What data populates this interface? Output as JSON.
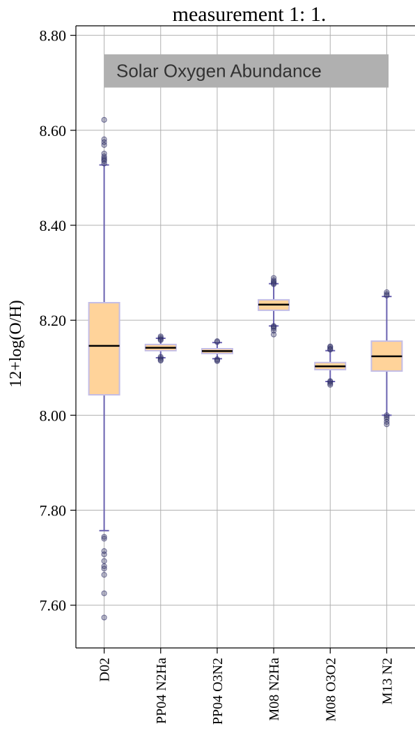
{
  "chart_data": {
    "type": "box",
    "title": "measurement 1: 1.",
    "xlabel": "",
    "ylabel": "12+log(O/H)",
    "ylim": [
      7.51,
      8.82
    ],
    "yticks": [
      7.6,
      7.8,
      8.0,
      8.2,
      8.4,
      8.6,
      8.8
    ],
    "ytick_labels": [
      "7.60",
      "7.80",
      "8.00",
      "8.20",
      "8.40",
      "8.60",
      "8.80"
    ],
    "grid": true,
    "band": {
      "label": "Solar Oxygen Abundance",
      "y_low": 8.69,
      "y_high": 8.76,
      "color": "#b0b0b0"
    },
    "box_color": "#ffd39a",
    "box_edge_color": "#c3bde6",
    "whisker_color": "#6a62b0",
    "median_color": "#000000",
    "categories": [
      "D02",
      "PP04 N2Ha",
      "PP04 O3N2",
      "M08 N2Ha",
      "M08 O3O2",
      "M13 N2"
    ],
    "boxes": [
      {
        "name": "D02",
        "q1": 8.043,
        "median": 8.146,
        "q3": 8.237,
        "whisker_low": 7.757,
        "whisker_high": 8.527,
        "outliers": [
          8.622,
          8.581,
          8.575,
          8.569,
          8.551,
          8.545,
          8.541,
          8.538,
          8.535,
          8.53,
          7.744,
          7.74,
          7.714,
          7.707,
          7.693,
          7.682,
          7.677,
          7.664,
          7.625,
          7.574
        ]
      },
      {
        "name": "PP04 N2Ha",
        "q1": 8.136,
        "median": 8.142,
        "q3": 8.149,
        "whisker_low": 8.121,
        "whisker_high": 8.162,
        "outliers": [
          8.166,
          8.163,
          8.16,
          8.158,
          8.123,
          8.12,
          8.117,
          8.115
        ]
      },
      {
        "name": "PP04 O3N2",
        "q1": 8.13,
        "median": 8.135,
        "q3": 8.14,
        "whisker_low": 8.119,
        "whisker_high": 8.153,
        "outliers": [
          8.156,
          8.154,
          8.118,
          8.116,
          8.114
        ]
      },
      {
        "name": "M08 N2Ha",
        "q1": 8.221,
        "median": 8.233,
        "q3": 8.243,
        "whisker_low": 8.188,
        "whisker_high": 8.277,
        "outliers": [
          8.289,
          8.284,
          8.281,
          8.278,
          8.276,
          8.188,
          8.186,
          8.183,
          8.178,
          8.17
        ]
      },
      {
        "name": "M08 O3O2",
        "q1": 8.096,
        "median": 8.103,
        "q3": 8.111,
        "whisker_low": 8.071,
        "whisker_high": 8.136,
        "outliers": [
          8.145,
          8.143,
          8.14,
          8.138,
          8.072,
          8.07,
          8.067,
          8.064
        ]
      },
      {
        "name": "M13 N2",
        "q1": 8.093,
        "median": 8.124,
        "q3": 8.156,
        "whisker_low": 8.0,
        "whisker_high": 8.25,
        "outliers": [
          8.259,
          8.255,
          8.252,
          8.0,
          7.996,
          7.992,
          7.986,
          7.981
        ]
      }
    ]
  }
}
